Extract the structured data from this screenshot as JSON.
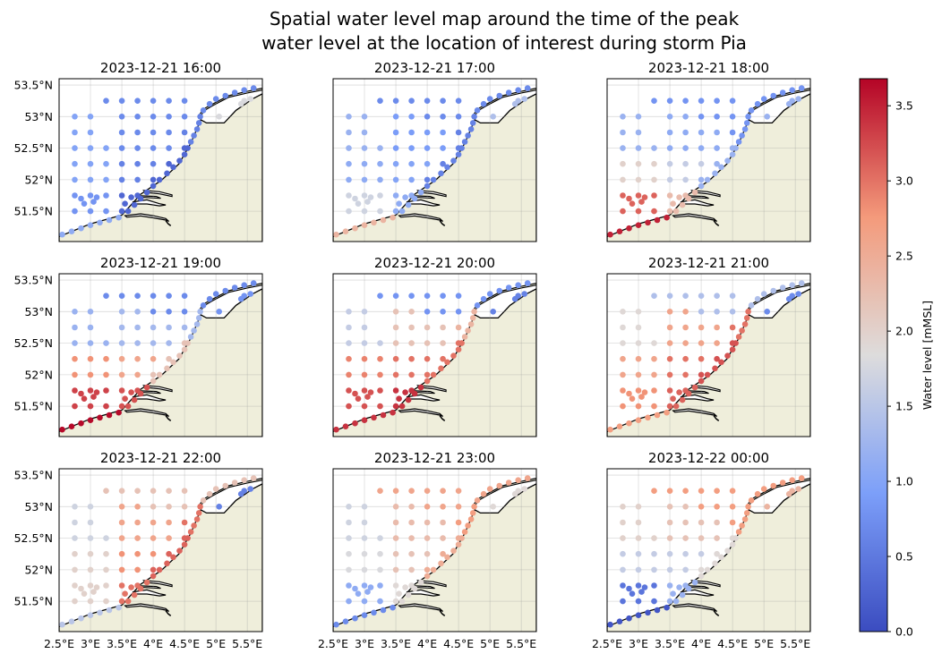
{
  "chart_data": {
    "type": "scatter",
    "title": "Spatial water level map around the time of the peak\nwater level at the location of interest during storm Pia",
    "title_lines": [
      "Spatial water level map around the time of the peak",
      "water level at the location of interest during storm Pia"
    ],
    "panel_titles": [
      "2023-12-21 16:00",
      "2023-12-21 17:00",
      "2023-12-21 18:00",
      "2023-12-21 19:00",
      "2023-12-21 20:00",
      "2023-12-21 21:00",
      "2023-12-21 22:00",
      "2023-12-21 23:00",
      "2023-12-22 00:00"
    ],
    "xlim": [
      2.5,
      5.74
    ],
    "ylim": [
      51.02,
      53.6
    ],
    "x_ticks": [
      2.5,
      3,
      3.5,
      4,
      4.5,
      5,
      5.5
    ],
    "x_tick_labels": [
      "2.5°E",
      "3°E",
      "3.5°E",
      "4°E",
      "4.5°E",
      "5°E",
      "5.5°E"
    ],
    "y_ticks": [
      51.5,
      52,
      52.5,
      53,
      53.5
    ],
    "y_tick_labels": [
      "51.5°N",
      "52°N",
      "52.5°N",
      "53°N",
      "53.5°N"
    ],
    "grid": true,
    "colorbar": {
      "label": "Water level [mMSL]",
      "colormap": "coolwarm",
      "vmin": 0,
      "vmax": 3.68,
      "ticks": [
        0,
        0.5,
        1,
        1.5,
        2,
        2.5,
        3,
        3.5
      ],
      "tick_labels": [
        "0.0",
        "0.5",
        "1.0",
        "1.5",
        "2.0",
        "2.5",
        "3.0",
        "3.5"
      ]
    },
    "land_color": "#efeedb",
    "zone_levels": {
      "sw_coast": [
        1.1,
        2.4,
        3.5,
        3.65,
        3.4,
        2.7,
        1.5,
        0.7,
        0.1
      ],
      "sw_offshore": [
        0.8,
        1.7,
        3.1,
        3.3,
        3.2,
        2.8,
        2.0,
        1.1,
        0.45
      ],
      "zeeland": [
        0.3,
        1.1,
        2.3,
        3.2,
        3.4,
        3.1,
        3.0,
        1.9,
        1.2
      ],
      "mid_west": [
        1.0,
        1.1,
        2.0,
        2.8,
        2.9,
        2.6,
        2.0,
        1.8,
        1.6
      ],
      "mid_east": [
        0.6,
        1.0,
        1.6,
        2.6,
        3.0,
        3.0,
        2.8,
        2.2,
        1.6
      ],
      "holland_coast": [
        0.3,
        0.6,
        1.2,
        2.2,
        3.0,
        3.2,
        3.1,
        2.5,
        1.9
      ],
      "north_west": [
        1.0,
        1.2,
        1.2,
        1.2,
        1.6,
        1.9,
        1.7,
        1.7,
        2.0
      ],
      "north_east": [
        0.7,
        0.9,
        1.1,
        1.3,
        2.2,
        2.6,
        2.6,
        2.3,
        2.2
      ],
      "north_coast": [
        0.6,
        0.6,
        0.8,
        1.3,
        2.4,
        3.0,
        3.0,
        2.7,
        2.7
      ],
      "far_north": [
        0.7,
        0.7,
        0.8,
        0.7,
        0.8,
        1.4,
        2.2,
        2.6,
        2.7
      ],
      "wadden": [
        1.8,
        1.4,
        1.2,
        0.8,
        0.6,
        0.7,
        0.6,
        1.9,
        2.4
      ]
    },
    "stations": [
      [
        2.75,
        51.5,
        "sw_offshore"
      ],
      [
        3.0,
        51.5,
        "sw_offshore"
      ],
      [
        3.25,
        51.5,
        "sw_offshore"
      ],
      [
        3.5,
        51.5,
        "zeeland"
      ],
      [
        2.75,
        51.75,
        "sw_offshore"
      ],
      [
        3.0,
        51.75,
        "sw_offshore"
      ],
      [
        3.25,
        51.75,
        "sw_offshore"
      ],
      [
        3.5,
        51.75,
        "zeeland"
      ],
      [
        3.75,
        51.75,
        "zeeland"
      ],
      [
        2.85,
        51.7,
        "sw_offshore"
      ],
      [
        3.05,
        51.65,
        "sw_offshore"
      ],
      [
        3.1,
        51.72,
        "sw_offshore"
      ],
      [
        2.9,
        51.62,
        "sw_offshore"
      ],
      [
        2.75,
        52.0,
        "mid_west"
      ],
      [
        3.0,
        52.0,
        "mid_west"
      ],
      [
        3.25,
        52.0,
        "mid_west"
      ],
      [
        3.5,
        52.0,
        "mid_east"
      ],
      [
        3.75,
        52.0,
        "mid_east"
      ],
      [
        4.0,
        52.0,
        "holland_coast"
      ],
      [
        2.75,
        52.25,
        "mid_west"
      ],
      [
        3.0,
        52.25,
        "mid_west"
      ],
      [
        3.25,
        52.25,
        "mid_west"
      ],
      [
        3.5,
        52.25,
        "mid_east"
      ],
      [
        3.75,
        52.25,
        "mid_east"
      ],
      [
        4.0,
        52.25,
        "mid_east"
      ],
      [
        4.25,
        52.25,
        "holland_coast"
      ],
      [
        2.75,
        52.5,
        "north_west"
      ],
      [
        3.0,
        52.5,
        "north_west"
      ],
      [
        3.25,
        52.5,
        "north_west"
      ],
      [
        3.5,
        52.5,
        "north_east"
      ],
      [
        3.75,
        52.5,
        "north_east"
      ],
      [
        4.0,
        52.5,
        "north_east"
      ],
      [
        4.25,
        52.5,
        "north_east"
      ],
      [
        4.5,
        52.5,
        "holland_coast"
      ],
      [
        2.75,
        52.75,
        "north_west"
      ],
      [
        3.0,
        52.75,
        "north_west"
      ],
      [
        3.5,
        52.75,
        "north_east"
      ],
      [
        3.75,
        52.75,
        "north_east"
      ],
      [
        4.0,
        52.75,
        "north_east"
      ],
      [
        4.25,
        52.75,
        "north_east"
      ],
      [
        4.5,
        52.75,
        "north_coast"
      ],
      [
        2.75,
        53.0,
        "north_west"
      ],
      [
        3.0,
        53.0,
        "north_west"
      ],
      [
        3.5,
        53.0,
        "north_east"
      ],
      [
        3.75,
        53.0,
        "north_east"
      ],
      [
        4.0,
        53.0,
        "far_north"
      ],
      [
        4.25,
        53.0,
        "far_north"
      ],
      [
        4.5,
        53.0,
        "far_north"
      ],
      [
        3.25,
        53.25,
        "far_north"
      ],
      [
        3.5,
        53.25,
        "far_north"
      ],
      [
        3.75,
        53.25,
        "far_north"
      ],
      [
        4.0,
        53.25,
        "far_north"
      ],
      [
        4.25,
        53.25,
        "far_north"
      ],
      [
        4.5,
        53.25,
        "far_north"
      ],
      [
        2.55,
        51.13,
        "sw_coast"
      ],
      [
        2.7,
        51.18,
        "sw_coast"
      ],
      [
        2.85,
        51.23,
        "sw_coast"
      ],
      [
        3.0,
        51.28,
        "sw_coast"
      ],
      [
        3.15,
        51.32,
        "sw_coast"
      ],
      [
        3.3,
        51.36,
        "sw_coast"
      ],
      [
        3.45,
        51.4,
        "sw_coast"
      ],
      [
        3.6,
        51.5,
        "zeeland"
      ],
      [
        3.7,
        51.6,
        "zeeland"
      ],
      [
        3.8,
        51.7,
        "zeeland"
      ],
      [
        3.9,
        51.8,
        "zeeland"
      ],
      [
        3.55,
        51.62,
        "zeeland"
      ],
      [
        3.65,
        51.72,
        "zeeland"
      ],
      [
        4.0,
        51.9,
        "holland_coast"
      ],
      [
        4.1,
        52.0,
        "holland_coast"
      ],
      [
        4.22,
        52.1,
        "holland_coast"
      ],
      [
        4.32,
        52.2,
        "holland_coast"
      ],
      [
        4.42,
        52.3,
        "holland_coast"
      ],
      [
        4.5,
        52.4,
        "holland_coast"
      ],
      [
        4.55,
        52.5,
        "holland_coast"
      ],
      [
        4.6,
        52.6,
        "north_coast"
      ],
      [
        4.65,
        52.7,
        "north_coast"
      ],
      [
        4.7,
        52.8,
        "north_coast"
      ],
      [
        4.73,
        52.9,
        "north_coast"
      ],
      [
        4.75,
        53.0,
        "north_coast"
      ],
      [
        4.8,
        53.1,
        "far_north"
      ],
      [
        4.9,
        53.2,
        "far_north"
      ],
      [
        5.0,
        53.28,
        "far_north"
      ],
      [
        5.15,
        53.33,
        "far_north"
      ],
      [
        5.3,
        53.38,
        "far_north"
      ],
      [
        5.45,
        53.42,
        "far_north"
      ],
      [
        5.6,
        53.45,
        "far_north"
      ],
      [
        5.05,
        53.0,
        "wadden"
      ],
      [
        5.4,
        53.2,
        "wadden"
      ],
      [
        5.55,
        53.28,
        "wadden"
      ],
      [
        5.45,
        53.25,
        "wadden"
      ]
    ]
  }
}
